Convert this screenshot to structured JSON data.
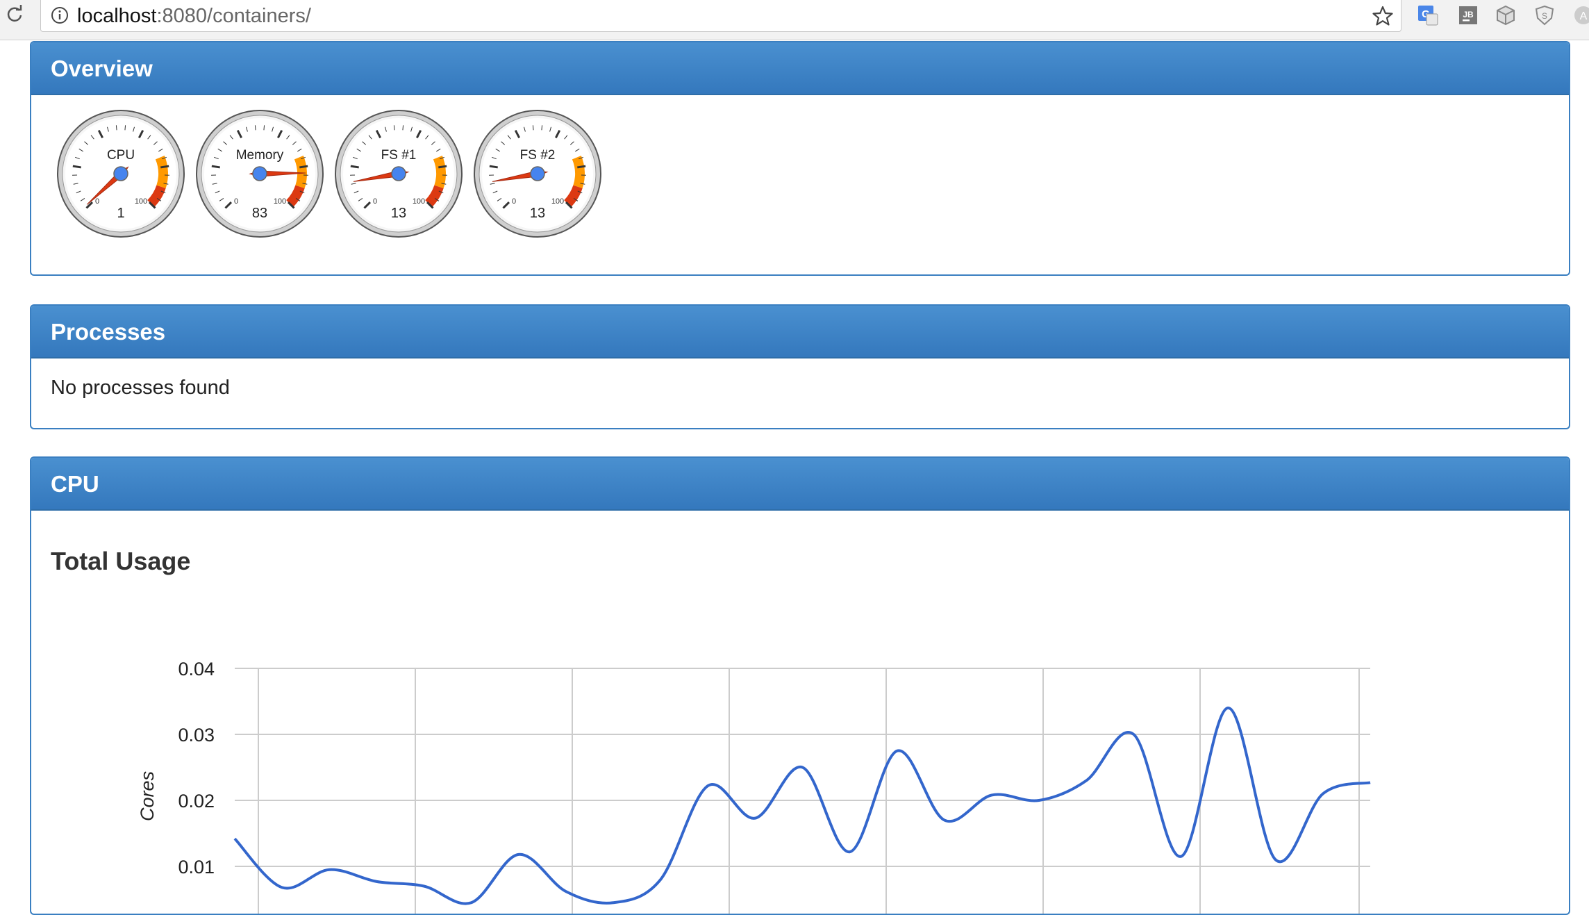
{
  "browser": {
    "url_host": "localhost",
    "url_path": ":8080/containers/",
    "extensions": [
      "google-translate-icon",
      "jetbrains-icon",
      "cube-extension-icon",
      "shield-extension-icon",
      "a-extension-icon"
    ]
  },
  "overview": {
    "title": "Overview",
    "gauges": [
      {
        "label": "CPU",
        "value": "1",
        "min": "0",
        "max": "100",
        "level": 1
      },
      {
        "label": "Memory",
        "value": "83",
        "min": "0",
        "max": "100",
        "level": 83
      },
      {
        "label": "FS #1",
        "value": "13",
        "min": "0",
        "max": "100",
        "level": 13
      },
      {
        "label": "FS #2",
        "value": "13",
        "min": "0",
        "max": "100",
        "level": 13
      }
    ]
  },
  "processes": {
    "title": "Processes",
    "empty_text": "No processes found"
  },
  "cpu": {
    "title": "CPU",
    "chart_title": "Total Usage"
  },
  "chart_data": {
    "type": "line",
    "title": "Total Usage",
    "ylabel": "Cores",
    "xlabel": "",
    "yticks": [
      "0.04",
      "0.03",
      "0.02",
      "0.01"
    ],
    "ylim": [
      0.0,
      0.04
    ],
    "grid": true,
    "series": [
      {
        "color": "#3366cc",
        "values": [
          0.0142,
          0.0068,
          0.0095,
          0.0077,
          0.007,
          0.0045,
          0.0118,
          0.0062,
          0.0045,
          0.008,
          0.0222,
          0.0173,
          0.025,
          0.0122,
          0.0275,
          0.017,
          0.0208,
          0.02,
          0.023,
          0.03,
          0.0115,
          0.034,
          0.011,
          0.021,
          0.0227
        ]
      }
    ]
  }
}
